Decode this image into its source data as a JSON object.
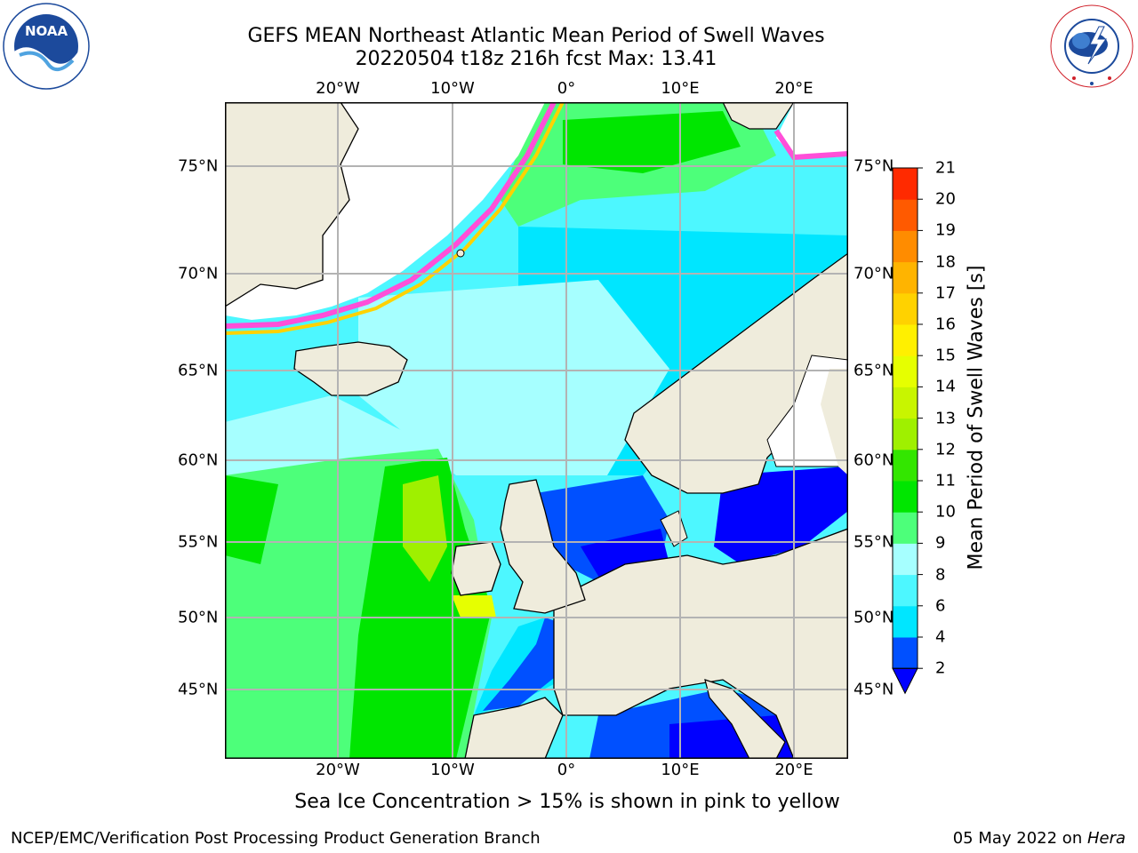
{
  "header": {
    "title_line1": "GEFS MEAN Northeast Atlantic Mean Period of Swell Waves",
    "title_line2": "20220504 t18z 216h fcst   Max: 13.41"
  },
  "logos": {
    "left": {
      "name": "NOAA",
      "ring_text": "NATIONAL OCEANIC AND ATMOSPHERIC ADMINISTRATION · U.S. DEPARTMENT OF COMMERCE"
    },
    "right": {
      "name": "NATIONAL WEATHER SERVICE"
    }
  },
  "map": {
    "lon_labels": [
      "20°W",
      "10°W",
      "0°",
      "10°E",
      "20°E"
    ],
    "lat_labels": [
      "75°N",
      "70°N",
      "65°N",
      "60°N",
      "55°N",
      "50°N",
      "45°N"
    ],
    "caption": "Sea Ice Concentration > 15% is shown in pink to yellow",
    "colors": {
      "land": "#efecdc",
      "ice_free_white": "#ffffff",
      "grid": "#b3b3b3",
      "coast": "#000000"
    }
  },
  "colorbar": {
    "label": "Mean Period of Swell Waves [s]",
    "ticks": [
      "2",
      "4",
      "6",
      "8",
      "9",
      "10",
      "11",
      "12",
      "13",
      "14",
      "15",
      "16",
      "17",
      "18",
      "19",
      "20",
      "21"
    ],
    "colors": [
      "#0050ff",
      "#00e6ff",
      "#4df7ff",
      "#a6ffff",
      "#4dff7a",
      "#00e600",
      "#33e600",
      "#9ff000",
      "#c8f500",
      "#e6ff00",
      "#fff000",
      "#ffd200",
      "#ffb400",
      "#ff8c00",
      "#ff5a00",
      "#ff2a00"
    ],
    "under_color": "#0000ff"
  },
  "footer": {
    "left": "NCEP/EMC/Verification Post Processing Product Generation Branch",
    "right_prefix": "05 May 2022 on ",
    "right_italic": "Hera"
  }
}
